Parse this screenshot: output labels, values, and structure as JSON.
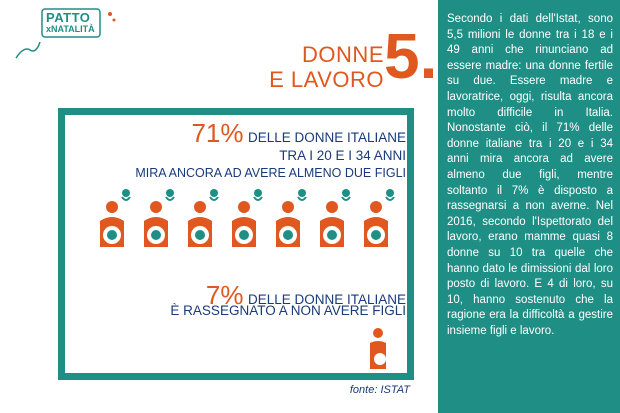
{
  "logo": {
    "line1": "PATTO",
    "line2": "xNATALITÀ"
  },
  "title": {
    "line1": "DONNE",
    "line2": "E LAVORO",
    "number": "5."
  },
  "stat1": {
    "percent": "71%",
    "line1": "DELLE DONNE ITALIANE",
    "line2": "TRA I 20 E I 34 ANNI",
    "line3": "MIRA ANCORA AD AVERE ALMENO DUE FIGLI"
  },
  "stat2": {
    "percent": "7%",
    "line1": "DELLE DONNE ITALIANE",
    "line2": "È RASSEGNATO A NON AVERE FIGLI"
  },
  "source": "fonte: ISTAT",
  "colors": {
    "accent": "#e0581f",
    "teal": "#1f8f85",
    "navy": "#1a3a7a"
  },
  "icons": {
    "pregnant": "pregnant-woman-icon",
    "baby": "baby-icon",
    "woman": "woman-icon"
  },
  "body": "Secondo i dati dell'Istat, sono 5,5 milioni le donne tra i 18 e i 49 anni che rinunciano ad essere madre: una donne fertile su due. Essere madre e lavoratrice, oggi, risulta ancora molto difficile in Italia. Nonostante ciò, il 71% delle donne italiane tra i 20 e i 34 anni mira ancora ad avere almeno due figli, mentre soltanto il 7% è disposto a rassegnarsi a non averne. Nel 2016, secondo l'Ispettorato del lavoro, erano mamme quasi 8 donne su 10 tra quelle che hanno dato le dimissioni dal loro posto di lavoro. E 4 di loro, su 10, hanno sostenuto che la ragione era la difficoltà a gestire insieme figli e lavoro."
}
